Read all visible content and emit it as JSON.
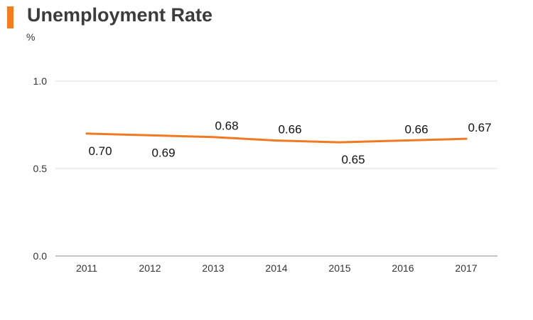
{
  "chart_data": {
    "type": "line",
    "title": "Unemployment Rate",
    "unit": "%",
    "x": [
      "2011",
      "2012",
      "2013",
      "2014",
      "2015",
      "2016",
      "2017"
    ],
    "series": [
      {
        "values": [
          0.7,
          0.69,
          0.68,
          0.66,
          0.65,
          0.66,
          0.67
        ],
        "labels": [
          "0.70",
          "0.69",
          "0.68",
          "0.66",
          "0.65",
          "0.66",
          "0.67"
        ],
        "label_positions": [
          "below",
          "below",
          "above",
          "above",
          "below",
          "above",
          "above"
        ],
        "color": "#f07a22"
      }
    ],
    "ylim": [
      0.0,
      1.0
    ],
    "yticks": [
      0.0,
      0.5,
      1.0
    ],
    "ytick_labels": [
      "0.0",
      "0.5",
      "1.0"
    ],
    "grid": true,
    "colors": {
      "accent": "#f47b20",
      "gridline": "#dddddd",
      "axis": "#888888"
    }
  }
}
